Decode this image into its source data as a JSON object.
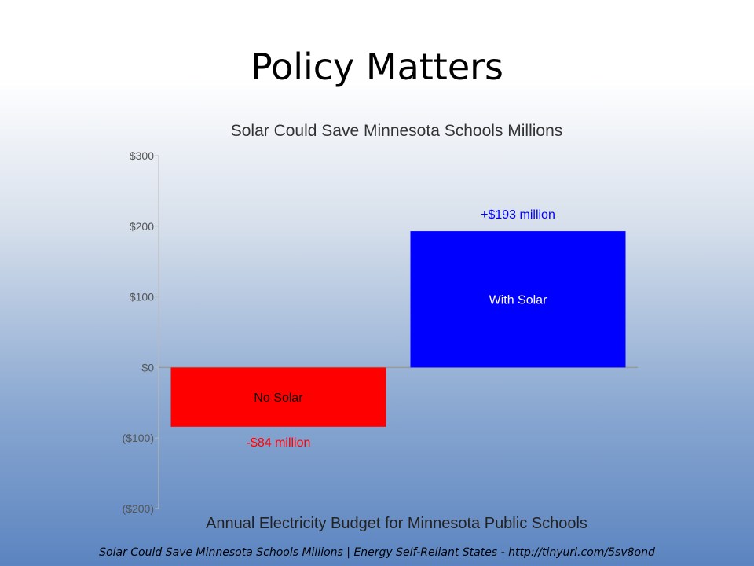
{
  "slide": {
    "title": "Policy Matters",
    "footer": "Solar Could Save Minnesota Schools Millions | Energy Self-Reliant States - http://tinyurl.com/5sv8ond"
  },
  "chart_data": {
    "type": "bar",
    "title": "Solar Could Save Minnesota Schools Millions",
    "xlabel": "Annual Electricity Budget for Minnesota Public Schools",
    "ylabel": "",
    "ylim": [
      -200,
      300
    ],
    "yticks": [
      300,
      200,
      100,
      0,
      -100,
      -200
    ],
    "ytick_labels": [
      "$300",
      "$200",
      "$100",
      "$0",
      "($100)",
      "($200)"
    ],
    "grid": false,
    "categories": [
      "No Solar",
      "With Solar"
    ],
    "values": [
      -84,
      193
    ],
    "data_labels": [
      "-$84 million",
      "+$193 million"
    ],
    "colors": [
      "#ff0000",
      "#0000ff"
    ],
    "label_colors": [
      "#ff0000",
      "#0000ff"
    ]
  }
}
